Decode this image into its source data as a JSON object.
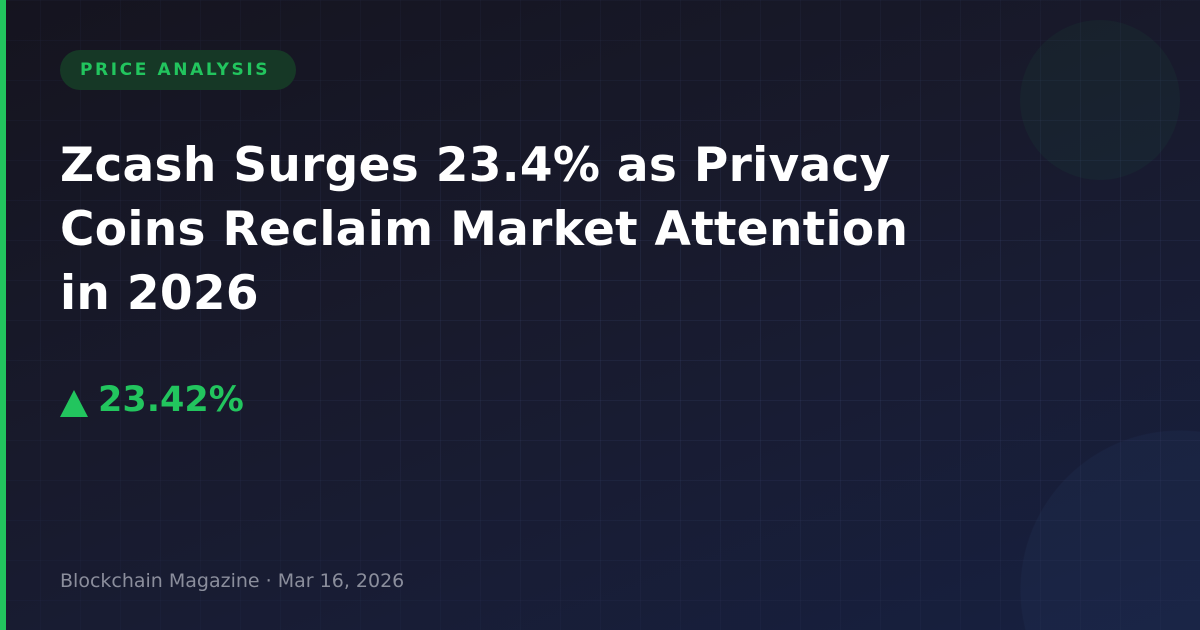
{
  "colors": {
    "accent": "#22c55e",
    "background": "#181a2c",
    "badge_bg": "#163826",
    "muted": "#8b8e9c"
  },
  "badge": {
    "label": "PRICE ANALYSIS"
  },
  "headline": "Zcash Surges 23.4% as Privacy Coins Reclaim Market Attention in 2026",
  "price_change": {
    "icon": "triangle-up-icon",
    "value": "23.42%"
  },
  "footer": {
    "publisher": "Blockchain Magazine",
    "separator": "·",
    "date": "Mar 16, 2026"
  }
}
